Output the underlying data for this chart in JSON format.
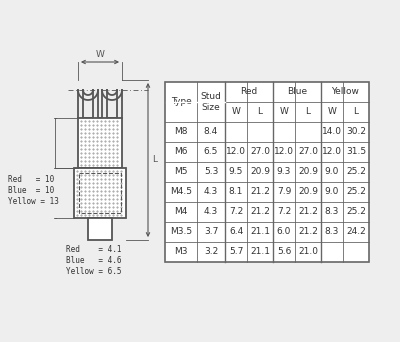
{
  "bg_color": "#eeeeee",
  "table_data": [
    [
      "M8",
      "8.4",
      "",
      "",
      "",
      "",
      "14.0",
      "30.2"
    ],
    [
      "M6",
      "6.5",
      "12.0",
      "27.0",
      "12.0",
      "27.0",
      "12.0",
      "31.5"
    ],
    [
      "M5",
      "5.3",
      "9.5",
      "20.9",
      "9.3",
      "20.9",
      "9.0",
      "25.2"
    ],
    [
      "M4.5",
      "4.3",
      "8.1",
      "21.2",
      "7.9",
      "20.9",
      "9.0",
      "25.2"
    ],
    [
      "M4",
      "4.3",
      "7.2",
      "21.2",
      "7.2",
      "21.2",
      "8.3",
      "25.2"
    ],
    [
      "M3.5",
      "3.7",
      "6.4",
      "21.1",
      "6.0",
      "21.2",
      "8.3",
      "24.2"
    ],
    [
      "M3",
      "3.2",
      "5.7",
      "21.1",
      "5.6",
      "21.0",
      "",
      ""
    ]
  ],
  "legend_top": [
    "Red   = 10",
    "Blue  = 10",
    "Yellow = 13"
  ],
  "legend_bot": [
    "Red    = 4.1",
    "Blue   = 4.6",
    "Yellow = 6.5"
  ],
  "line_color": "#555555",
  "text_color": "#333333",
  "table_line_color": "#666666"
}
